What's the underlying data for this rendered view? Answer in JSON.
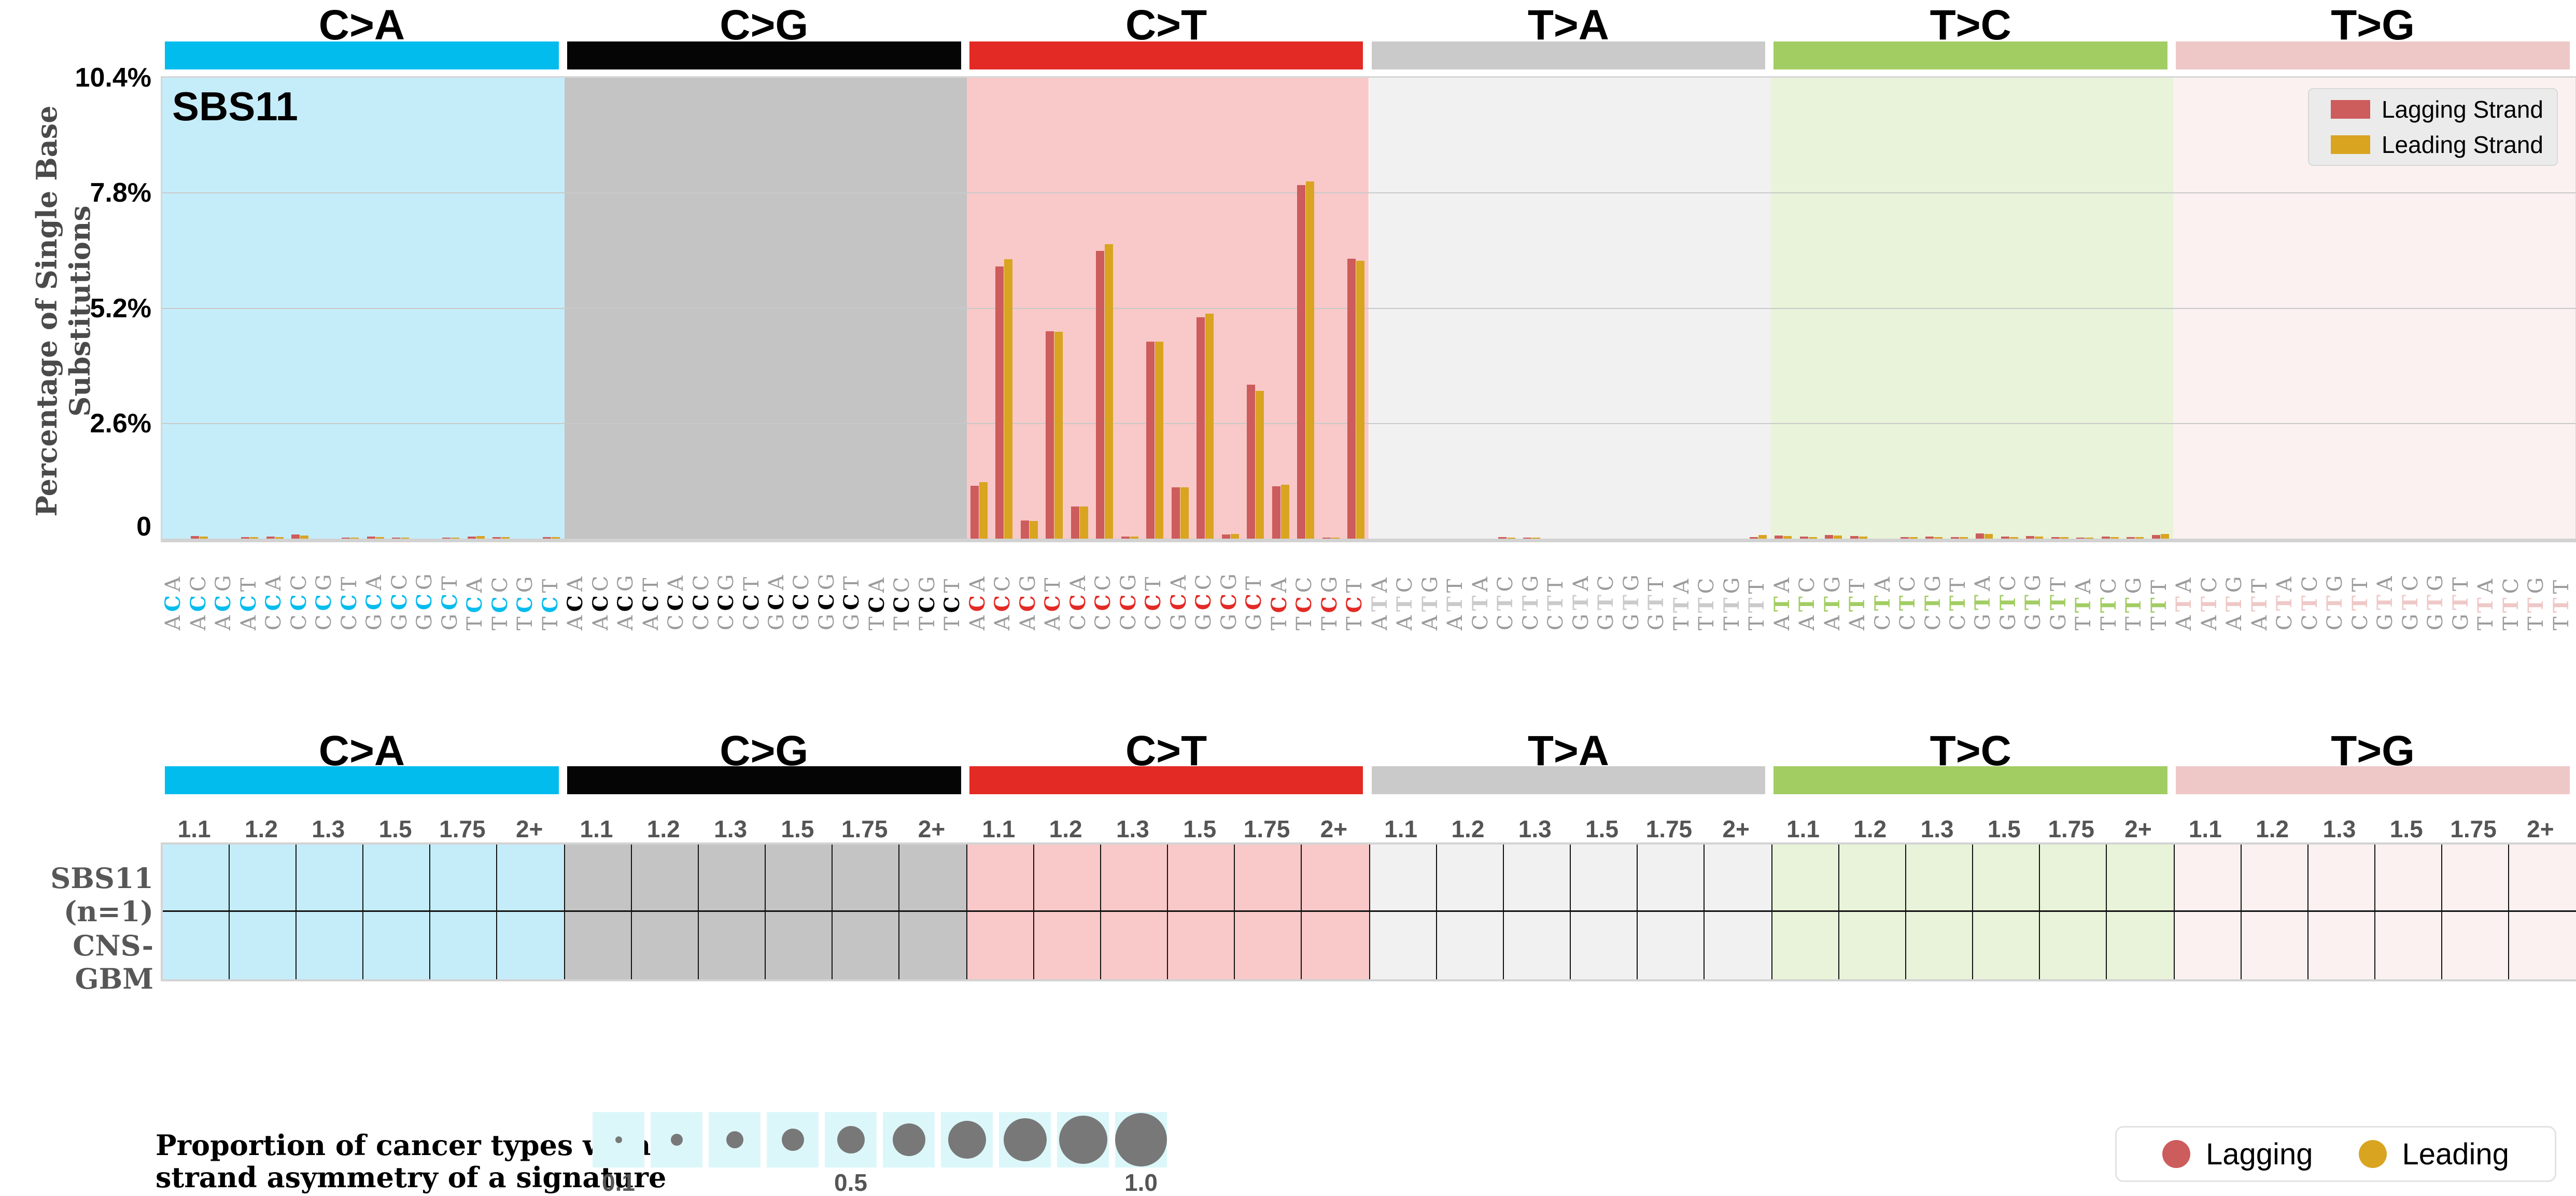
{
  "figure_title": "SBS11",
  "chart": {
    "signature_label": "SBS11",
    "ylabel": "Percentage of Single Base Substitutions",
    "ytick_labels": [
      "10.4%",
      "7.8%",
      "5.2%",
      "2.6%",
      "0"
    ],
    "legend": {
      "lagging": "Lagging Strand",
      "leading": "Leading Strand"
    },
    "lagging_color": "#CD5C5C",
    "leading_color": "#D9A420"
  },
  "groups": [
    {
      "label": "C>A",
      "color": "#03BCEE",
      "panel_bg": "#C5EDF9"
    },
    {
      "label": "C>G",
      "color": "#050505",
      "panel_bg": "#C4C4C4"
    },
    {
      "label": "C>T",
      "color": "#E32A25",
      "panel_bg": "#F8C9C8"
    },
    {
      "label": "T>A",
      "color": "#CBCACB",
      "panel_bg": "#F2F1F1"
    },
    {
      "label": "T>C",
      "color": "#A2CD63",
      "panel_bg": "#E8F3D9"
    },
    {
      "label": "T>G",
      "color": "#EEC8C7",
      "panel_bg": "#FAF1F0"
    }
  ],
  "chart_data": {
    "type": "bar",
    "title": "SBS11",
    "ylabel": "Percentage of Single Base Substitutions",
    "ylim": [
      0,
      10.4
    ],
    "ytick_values": [
      0,
      2.6,
      5.2,
      7.8,
      10.4
    ],
    "grid": "horizontal",
    "legend_position": "top-right",
    "group_labels": [
      "C>A",
      "C>G",
      "C>T",
      "T>A",
      "T>C",
      "T>G"
    ],
    "categories": [
      "ACA",
      "ACC",
      "ACG",
      "ACT",
      "CCA",
      "CCC",
      "CCG",
      "CCT",
      "GCA",
      "GCC",
      "GCG",
      "GCT",
      "TCA",
      "TCC",
      "TCG",
      "TCT",
      "ACA",
      "ACC",
      "ACG",
      "ACT",
      "CCA",
      "CCC",
      "CCG",
      "CCT",
      "GCA",
      "GCC",
      "GCG",
      "GCT",
      "TCA",
      "TCC",
      "TCG",
      "TCT",
      "ACA",
      "ACC",
      "ACG",
      "ACT",
      "CCA",
      "CCC",
      "CCG",
      "CCT",
      "GCA",
      "GCC",
      "GCG",
      "GCT",
      "TCA",
      "TCC",
      "TCG",
      "TCT",
      "ATA",
      "ATC",
      "ATG",
      "ATT",
      "CTA",
      "CTC",
      "CTG",
      "CTT",
      "GTA",
      "GTC",
      "GTG",
      "GTT",
      "TTA",
      "TTC",
      "TTG",
      "TTT",
      "ATA",
      "ATC",
      "ATG",
      "ATT",
      "CTA",
      "CTC",
      "CTG",
      "CTT",
      "GTA",
      "GTC",
      "GTG",
      "GTT",
      "TTA",
      "TTC",
      "TTG",
      "TTT",
      "ATA",
      "ATC",
      "ATG",
      "ATT",
      "CTA",
      "CTC",
      "CTG",
      "CTT",
      "GTA",
      "GTC",
      "GTG",
      "GTT",
      "TTA",
      "TTC",
      "TTG",
      "TTT"
    ],
    "series": [
      {
        "name": "Lagging Strand",
        "color": "#CD5C5C",
        "values": [
          0,
          0.06,
          0,
          0.04,
          0.05,
          0.09,
          0,
          0.02,
          0.05,
          0.02,
          0,
          0.02,
          0.05,
          0.03,
          0,
          0.03,
          0,
          0,
          0,
          0,
          0,
          0,
          0,
          0,
          0,
          0,
          0,
          0,
          0,
          0,
          0,
          0,
          1.19,
          6.14,
          0.41,
          4.68,
          0.73,
          6.49,
          0.05,
          4.45,
          1.16,
          5.0,
          0.09,
          3.47,
          1.18,
          7.98,
          0.02,
          6.32,
          0,
          0,
          0,
          0,
          0,
          0.03,
          0.02,
          0,
          0,
          0,
          0,
          0,
          0,
          0,
          0,
          0.04,
          0.07,
          0.05,
          0.08,
          0.06,
          0,
          0.04,
          0.05,
          0.03,
          0.12,
          0.05,
          0.06,
          0.04,
          0.02,
          0.05,
          0.03,
          0.08,
          0,
          0,
          0,
          0,
          0,
          0,
          0,
          0,
          0,
          0,
          0,
          0,
          0,
          0,
          0,
          0
        ]
      },
      {
        "name": "Leading Strand",
        "color": "#D9A420",
        "values": [
          0,
          0.05,
          0,
          0.04,
          0.04,
          0.07,
          0,
          0.02,
          0.04,
          0.02,
          0,
          0.02,
          0.06,
          0.03,
          0,
          0.03,
          0,
          0,
          0,
          0,
          0,
          0,
          0,
          0,
          0,
          0,
          0,
          0,
          0,
          0,
          0,
          0,
          1.28,
          6.31,
          0.4,
          4.67,
          0.72,
          6.64,
          0.05,
          4.45,
          1.16,
          5.08,
          0.1,
          3.33,
          1.22,
          8.06,
          0.02,
          6.27,
          0,
          0,
          0,
          0,
          0,
          0.02,
          0.02,
          0,
          0,
          0,
          0,
          0,
          0,
          0,
          0,
          0.08,
          0.06,
          0.04,
          0.07,
          0.05,
          0,
          0.04,
          0.04,
          0.03,
          0.1,
          0.04,
          0.05,
          0.03,
          0.02,
          0.04,
          0.03,
          0.1,
          0,
          0,
          0,
          0,
          0,
          0,
          0,
          0,
          0,
          0,
          0,
          0,
          0,
          0,
          0,
          0
        ]
      }
    ]
  },
  "table": {
    "columns": [
      "1.1",
      "1.2",
      "1.3",
      "1.5",
      "1.75",
      "2+"
    ],
    "rows": [
      "SBS11 (n=1)",
      "CNS-GBM"
    ]
  },
  "bubble_legend": {
    "caption_line1": "Proportion of cancer types with",
    "caption_line2": "strand asymmetry of a signature",
    "values": [
      0.1,
      0.2,
      0.3,
      0.4,
      0.5,
      0.6,
      0.7,
      0.8,
      0.9,
      1.0
    ],
    "tick_labels": {
      "first": "0.1",
      "middle": "0.5",
      "last": "1.0"
    },
    "dot_color": "#787878",
    "cell_bg": "#DCF7F9"
  },
  "strand_legend": {
    "lagging": "Lagging",
    "leading": "Leading"
  }
}
